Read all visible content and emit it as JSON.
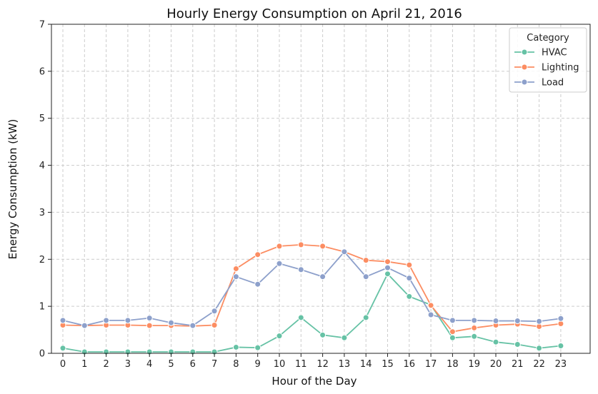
{
  "chart_data": {
    "type": "line",
    "title": "Hourly Energy Consumption on April 21, 2016",
    "xlabel": "Hour of the Day",
    "ylabel": "Energy Consumption (kW)",
    "x": [
      0,
      1,
      2,
      3,
      4,
      5,
      6,
      7,
      8,
      9,
      10,
      11,
      12,
      13,
      14,
      15,
      16,
      17,
      18,
      19,
      20,
      21,
      22,
      23
    ],
    "xticks": [
      "0",
      "1",
      "2",
      "3",
      "4",
      "5",
      "6",
      "7",
      "8",
      "9",
      "10",
      "11",
      "12",
      "13",
      "14",
      "15",
      "16",
      "17",
      "18",
      "19",
      "20",
      "21",
      "22",
      "23"
    ],
    "ylim": [
      0,
      7
    ],
    "yticks": [
      "0",
      "1",
      "2",
      "3",
      "4",
      "5",
      "6",
      "7"
    ],
    "grid": true,
    "legend": {
      "title": "Category",
      "position": "top-right"
    },
    "series": [
      {
        "name": "HVAC",
        "color": "#66c2a5",
        "values": [
          0.11,
          0.03,
          0.03,
          0.03,
          0.03,
          0.03,
          0.03,
          0.03,
          0.13,
          0.12,
          0.37,
          0.76,
          0.39,
          0.33,
          0.76,
          1.69,
          1.21,
          1.03,
          0.33,
          0.36,
          0.24,
          0.19,
          0.11,
          0.16
        ]
      },
      {
        "name": "Lighting",
        "color": "#fc8d62",
        "values": [
          0.6,
          0.59,
          0.6,
          0.6,
          0.59,
          0.59,
          0.58,
          0.6,
          1.8,
          2.1,
          2.28,
          2.31,
          2.28,
          2.16,
          1.98,
          1.95,
          1.88,
          1.02,
          0.46,
          0.54,
          0.6,
          0.62,
          0.57,
          0.63
        ]
      },
      {
        "name": "Load",
        "color": "#8da0cb",
        "values": [
          0.7,
          0.59,
          0.7,
          0.7,
          0.75,
          0.65,
          0.59,
          0.9,
          1.63,
          1.47,
          1.91,
          1.78,
          1.63,
          2.16,
          1.63,
          1.82,
          1.6,
          0.82,
          0.7,
          0.7,
          0.69,
          0.69,
          0.68,
          0.74
        ]
      }
    ]
  }
}
